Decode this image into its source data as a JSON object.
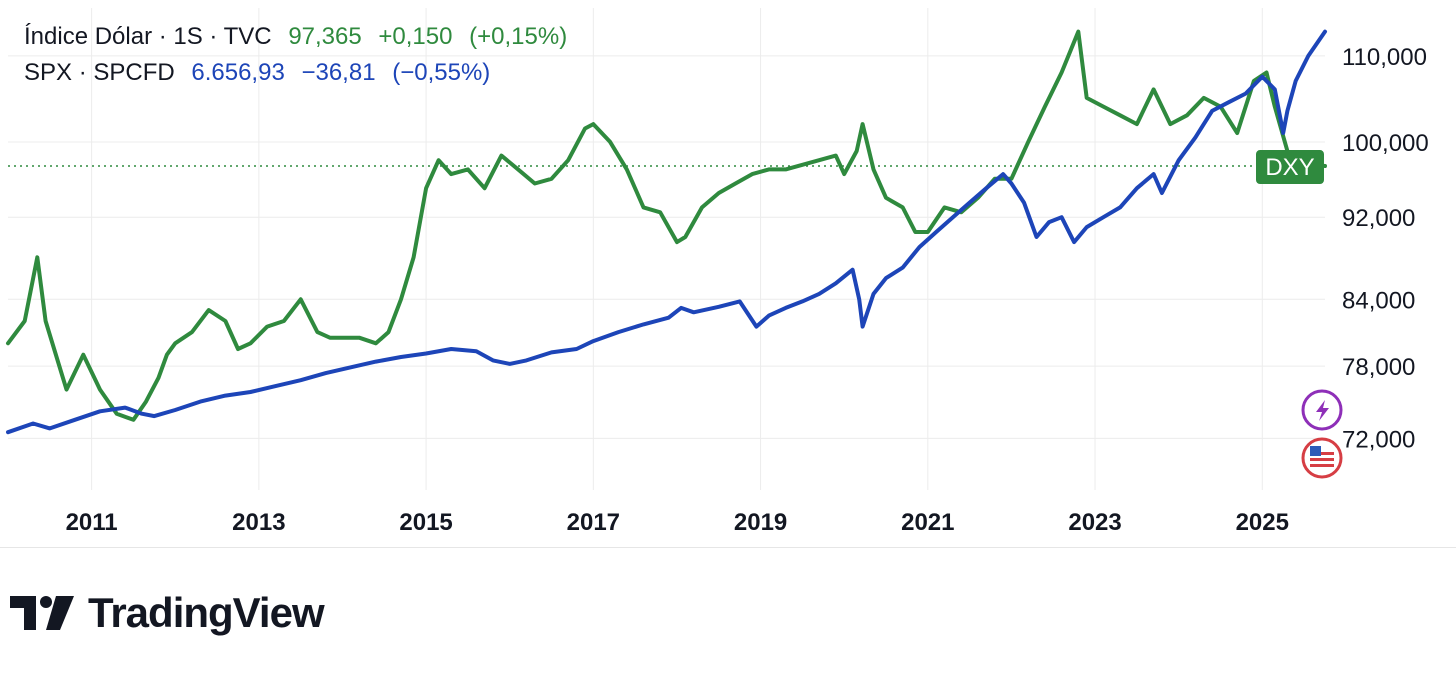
{
  "legend": {
    "dxy": {
      "name": "Índice Dólar · 1S · TVC",
      "value": "97,365",
      "change": "+0,150",
      "change_pct": "(+0,15%)"
    },
    "spx": {
      "name": "SPX · SPCFD",
      "value": "6.656,93",
      "change": "−36,81",
      "change_pct": "(−0,55%)"
    }
  },
  "branding": {
    "name": "TradingView"
  },
  "colors": {
    "dxy": "#2f8a3e",
    "spx": "#1d45b8",
    "grid": "#ececec",
    "axis_text": "#131722"
  },
  "chart_data": {
    "type": "line",
    "x_ticks": [
      "2011",
      "2013",
      "2015",
      "2017",
      "2019",
      "2021",
      "2023",
      "2025"
    ],
    "y_ticks": [
      "110,000",
      "100,000",
      "92,000",
      "84,000",
      "78,000",
      "72,000"
    ],
    "y_scale": "log",
    "ylim": [
      68,
      116
    ],
    "xlim": [
      2010.0,
      2025.75
    ],
    "dxy_price_line": 97.365,
    "dxy_tag": "DXY",
    "grid": true,
    "series": [
      {
        "name": "Índice Dólar",
        "color": "#2f8a3e",
        "x": [
          2010.0,
          2010.2,
          2010.35,
          2010.45,
          2010.7,
          2010.9,
          2011.1,
          2011.3,
          2011.5,
          2011.65,
          2011.8,
          2011.9,
          2012.0,
          2012.2,
          2012.4,
          2012.6,
          2012.75,
          2012.9,
          2013.1,
          2013.3,
          2013.5,
          2013.7,
          2013.85,
          2014.0,
          2014.2,
          2014.4,
          2014.55,
          2014.7,
          2014.85,
          2015.0,
          2015.15,
          2015.3,
          2015.5,
          2015.7,
          2015.9,
          2016.1,
          2016.3,
          2016.5,
          2016.7,
          2016.9,
          2017.0,
          2017.2,
          2017.4,
          2017.6,
          2017.8,
          2018.0,
          2018.1,
          2018.3,
          2018.5,
          2018.7,
          2018.9,
          2019.1,
          2019.3,
          2019.5,
          2019.7,
          2019.9,
          2020.0,
          2020.15,
          2020.22,
          2020.35,
          2020.5,
          2020.7,
          2020.85,
          2021.0,
          2021.2,
          2021.4,
          2021.6,
          2021.8,
          2022.0,
          2022.2,
          2022.4,
          2022.6,
          2022.8,
          2022.9,
          2023.1,
          2023.3,
          2023.5,
          2023.7,
          2023.9,
          2024.1,
          2024.3,
          2024.5,
          2024.7,
          2024.9,
          2025.05,
          2025.15,
          2025.3,
          2025.45,
          2025.6,
          2025.75
        ],
        "y": [
          80,
          82,
          88,
          82,
          76,
          79,
          76,
          74,
          73.5,
          75,
          77,
          79,
          80,
          81,
          83,
          82,
          79.5,
          80,
          81.5,
          82,
          84,
          81,
          80.5,
          80.5,
          80.5,
          80,
          81,
          84,
          88,
          95,
          98,
          96.5,
          97,
          95,
          98.5,
          97,
          95.5,
          96,
          98,
          101.5,
          102,
          100,
          97,
          93,
          92.5,
          89.5,
          90,
          93,
          94.5,
          95.5,
          96.5,
          97,
          97,
          97.5,
          98,
          98.5,
          96.5,
          99,
          102,
          97,
          94,
          93,
          90.5,
          90.5,
          93,
          92.5,
          94,
          96,
          96,
          100,
          104,
          108,
          113,
          105,
          104,
          103,
          102,
          106,
          102,
          103,
          105,
          104,
          101,
          107,
          108,
          104,
          99,
          98,
          97.5,
          97.365
        ]
      },
      {
        "name": "SPX",
        "color": "#1d45b8",
        "x": [
          2010.0,
          2010.3,
          2010.5,
          2010.8,
          2011.1,
          2011.4,
          2011.6,
          2011.75,
          2012.0,
          2012.3,
          2012.6,
          2012.9,
          2013.2,
          2013.5,
          2013.8,
          2014.1,
          2014.4,
          2014.7,
          2015.0,
          2015.3,
          2015.6,
          2015.8,
          2016.0,
          2016.2,
          2016.5,
          2016.8,
          2017.0,
          2017.3,
          2017.6,
          2017.9,
          2018.05,
          2018.2,
          2018.5,
          2018.75,
          2018.95,
          2019.1,
          2019.3,
          2019.5,
          2019.7,
          2019.9,
          2020.1,
          2020.18,
          2020.22,
          2020.35,
          2020.5,
          2020.7,
          2020.9,
          2021.1,
          2021.3,
          2021.5,
          2021.7,
          2021.9,
          2022.0,
          2022.15,
          2022.3,
          2022.45,
          2022.6,
          2022.75,
          2022.9,
          2023.1,
          2023.3,
          2023.5,
          2023.7,
          2023.8,
          2024.0,
          2024.2,
          2024.4,
          2024.6,
          2024.8,
          2025.0,
          2025.15,
          2025.25,
          2025.3,
          2025.4,
          2025.55,
          2025.75
        ],
        "y": [
          72.5,
          73.2,
          72.8,
          73.5,
          74.2,
          74.5,
          74.0,
          73.8,
          74.3,
          75.0,
          75.5,
          75.8,
          76.3,
          76.8,
          77.4,
          77.9,
          78.4,
          78.8,
          79.1,
          79.5,
          79.3,
          78.5,
          78.2,
          78.5,
          79.2,
          79.5,
          80.2,
          81.0,
          81.7,
          82.3,
          83.2,
          82.8,
          83.3,
          83.8,
          81.5,
          82.5,
          83.2,
          83.8,
          84.5,
          85.5,
          86.8,
          84.0,
          81.5,
          84.5,
          86.0,
          87.0,
          89.0,
          90.5,
          92.0,
          93.5,
          95.0,
          96.5,
          95.5,
          93.5,
          90.0,
          91.5,
          92.0,
          89.5,
          91.0,
          92.0,
          93.0,
          95.0,
          96.5,
          94.5,
          98.0,
          100.5,
          103.5,
          104.5,
          105.5,
          107.5,
          106.0,
          101.0,
          103.5,
          107.0,
          110.0,
          113.0
        ]
      }
    ]
  }
}
